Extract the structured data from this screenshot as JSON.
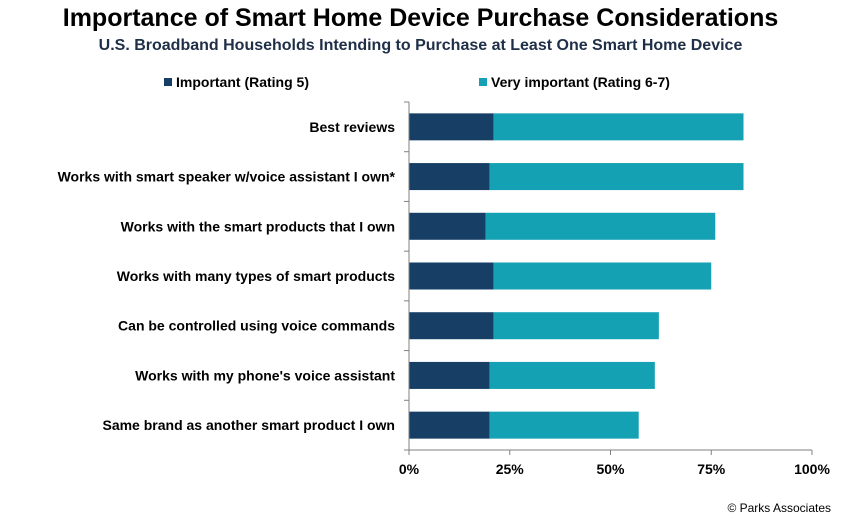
{
  "header": {
    "title": "Importance of Smart Home Device Purchase Considerations",
    "subtitle": "U.S. Broadband Households Intending to Purchase at Least One Smart Home Device"
  },
  "source": "© Parks Associates",
  "chart_data": {
    "type": "bar",
    "orientation": "horizontal",
    "stacked": true,
    "categories": [
      "Best reviews",
      "Works with smart speaker w/voice assistant I own*",
      "Works with the smart products that I own",
      "Works with many types of smart products",
      "Can be controlled using voice commands",
      "Works with my phone's voice assistant",
      "Same brand as another smart product I own"
    ],
    "series": [
      {
        "name": "Important (Rating 5)",
        "color": "#173f66",
        "values": [
          21,
          20,
          19,
          21,
          21,
          20,
          20
        ]
      },
      {
        "name": "Very important (Rating 6-7)",
        "color": "#13a1b3",
        "values": [
          62,
          63,
          57,
          54,
          41,
          41,
          37
        ]
      }
    ],
    "xlim": [
      0,
      100
    ],
    "xticks": [
      "0%",
      "25%",
      "50%",
      "75%",
      "100%"
    ],
    "legend_position": "top",
    "grid": false
  }
}
